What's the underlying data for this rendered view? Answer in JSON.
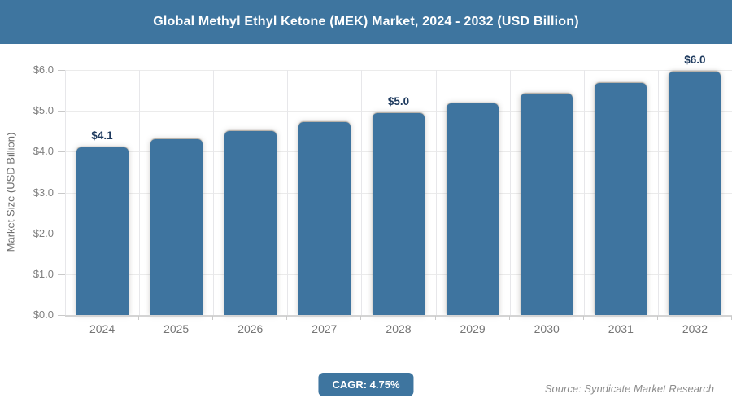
{
  "header": {
    "title": "Global Methyl Ethyl Ketone (MEK) Market, 2024 - 2032 (USD Billion)"
  },
  "chart_data": {
    "type": "bar",
    "title": "Global Methyl Ethyl Ketone (MEK) Market, 2024 - 2032 (USD Billion)",
    "categories": [
      "2024",
      "2025",
      "2026",
      "2027",
      "2028",
      "2029",
      "2030",
      "2031",
      "2032"
    ],
    "values": [
      4.1,
      4.3,
      4.5,
      4.72,
      4.95,
      5.18,
      5.43,
      5.69,
      5.96
    ],
    "data_labels": [
      "$4.1",
      null,
      null,
      null,
      "$5.0",
      null,
      null,
      null,
      "$6.0"
    ],
    "xlabel": "",
    "ylabel": "Market Size (USD Billion)",
    "ylim": [
      0,
      6
    ],
    "y_tick_step": 1,
    "y_tick_labels": [
      "$0.0",
      "$1.0",
      "$2.0",
      "$3.0",
      "$4.0",
      "$5.0",
      "$6.0"
    ],
    "grid": true,
    "legend": false,
    "bar_color": "#3e749f",
    "value_label_color": "#1e3a5e",
    "header_color": "#3e759f"
  },
  "footer": {
    "cagr_label": "CAGR: 4.75%",
    "source": "Source: Syndicate Market Research"
  }
}
